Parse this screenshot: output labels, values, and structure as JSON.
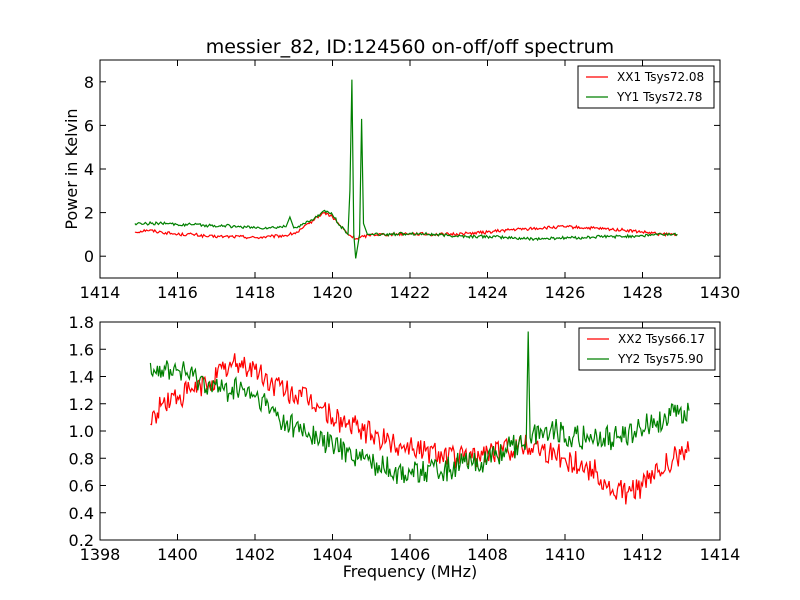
{
  "title": "messier_82, ID:124560 on-off/off spectrum",
  "colors": {
    "red": "#ff0000",
    "green": "#008000"
  },
  "chart_data": [
    {
      "type": "line",
      "ylabel": "Power in Kelvin",
      "xlabel": "",
      "xlim": [
        1414,
        1430
      ],
      "ylim": [
        -1,
        9
      ],
      "xticks": [
        1414,
        1416,
        1418,
        1420,
        1422,
        1424,
        1426,
        1428,
        1430
      ],
      "yticks": [
        0,
        2,
        4,
        6,
        8
      ],
      "legend_position": "top-right",
      "grid": false,
      "series": [
        {
          "name": "XX1 Tsys72.08",
          "color": "#ff0000",
          "x": [
            1414.9,
            1415.2,
            1415.6,
            1416.0,
            1416.4,
            1416.8,
            1417.2,
            1417.6,
            1418.0,
            1418.4,
            1418.8,
            1419.1,
            1419.4,
            1419.6,
            1419.8,
            1420.0,
            1420.2,
            1420.4,
            1420.6,
            1420.8,
            1421.0,
            1421.5,
            1422.0,
            1422.5,
            1423.0,
            1423.5,
            1424.0,
            1424.5,
            1425.0,
            1425.5,
            1426.0,
            1426.5,
            1427.0,
            1427.5,
            1428.0,
            1428.5,
            1428.9
          ],
          "y": [
            1.1,
            1.2,
            1.1,
            1.0,
            1.0,
            0.9,
            0.9,
            0.9,
            0.85,
            0.9,
            0.95,
            1.1,
            1.5,
            1.8,
            2.0,
            1.8,
            1.4,
            1.0,
            0.8,
            0.9,
            1.0,
            1.0,
            1.05,
            1.0,
            1.0,
            1.05,
            1.1,
            1.2,
            1.25,
            1.3,
            1.35,
            1.3,
            1.25,
            1.2,
            1.1,
            1.0,
            1.0
          ]
        },
        {
          "name": "YY1 Tsys72.78",
          "color": "#008000",
          "x": [
            1414.9,
            1415.2,
            1415.6,
            1416.0,
            1416.4,
            1416.8,
            1417.2,
            1417.6,
            1418.0,
            1418.4,
            1418.8,
            1418.9,
            1419.0,
            1419.3,
            1419.6,
            1419.8,
            1420.0,
            1420.2,
            1420.4,
            1420.45,
            1420.5,
            1420.55,
            1420.6,
            1420.7,
            1420.75,
            1420.8,
            1420.9,
            1421.0,
            1421.5,
            1422.0,
            1422.5,
            1423.0,
            1423.5,
            1424.0,
            1424.5,
            1425.0,
            1425.5,
            1426.0,
            1426.5,
            1427.0,
            1427.5,
            1428.0,
            1428.5,
            1428.9
          ],
          "y": [
            1.5,
            1.5,
            1.5,
            1.45,
            1.45,
            1.4,
            1.4,
            1.35,
            1.3,
            1.3,
            1.35,
            1.8,
            1.3,
            1.5,
            1.8,
            2.1,
            1.9,
            1.4,
            1.0,
            3.0,
            8.1,
            1.0,
            -0.1,
            1.0,
            6.3,
            1.5,
            1.0,
            1.0,
            1.0,
            1.05,
            1.0,
            0.95,
            0.9,
            0.9,
            0.85,
            0.8,
            0.8,
            0.85,
            0.85,
            0.9,
            0.9,
            0.95,
            1.0,
            1.0
          ]
        }
      ]
    },
    {
      "type": "line",
      "ylabel": "",
      "xlabel": "Frequency (MHz)",
      "xlim": [
        1398,
        1414
      ],
      "ylim": [
        0.2,
        1.8
      ],
      "xticks": [
        1398,
        1400,
        1402,
        1404,
        1406,
        1408,
        1410,
        1412,
        1414
      ],
      "yticks": [
        0.2,
        0.4,
        0.6,
        0.8,
        1.0,
        1.2,
        1.4,
        1.6,
        1.8
      ],
      "legend_position": "top-right",
      "grid": false,
      "series": [
        {
          "name": "XX2 Tsys66.17",
          "color": "#ff0000",
          "x": [
            1399.3,
            1399.6,
            1400.0,
            1400.4,
            1400.8,
            1401.2,
            1401.6,
            1402.0,
            1402.4,
            1402.8,
            1403.2,
            1403.6,
            1404.0,
            1404.4,
            1404.8,
            1405.2,
            1405.6,
            1406.0,
            1406.4,
            1406.8,
            1407.2,
            1407.6,
            1408.0,
            1408.4,
            1408.8,
            1409.2,
            1409.6,
            1410.0,
            1410.4,
            1410.8,
            1411.2,
            1411.6,
            1412.0,
            1412.4,
            1412.8,
            1413.2
          ],
          "y": [
            1.05,
            1.2,
            1.25,
            1.3,
            1.35,
            1.45,
            1.5,
            1.45,
            1.35,
            1.3,
            1.25,
            1.2,
            1.1,
            1.05,
            1.0,
            0.95,
            0.9,
            0.9,
            0.85,
            0.85,
            0.8,
            0.8,
            0.85,
            0.85,
            0.9,
            0.9,
            0.85,
            0.8,
            0.75,
            0.7,
            0.55,
            0.55,
            0.6,
            0.7,
            0.8,
            0.85
          ]
        },
        {
          "name": "YY2 Tsys75.90",
          "color": "#008000",
          "x": [
            1399.3,
            1399.6,
            1400.0,
            1400.4,
            1400.8,
            1401.2,
            1401.6,
            1402.0,
            1402.4,
            1402.8,
            1403.2,
            1403.6,
            1404.0,
            1404.4,
            1404.8,
            1405.2,
            1405.6,
            1406.0,
            1406.4,
            1406.8,
            1407.2,
            1407.6,
            1408.0,
            1408.4,
            1408.8,
            1409.0,
            1409.05,
            1409.1,
            1409.4,
            1409.8,
            1410.2,
            1410.6,
            1411.0,
            1411.4,
            1411.8,
            1412.2,
            1412.6,
            1413.2
          ],
          "y": [
            1.5,
            1.45,
            1.45,
            1.4,
            1.35,
            1.3,
            1.3,
            1.25,
            1.15,
            1.05,
            1.0,
            0.95,
            0.9,
            0.85,
            0.8,
            0.75,
            0.7,
            0.7,
            0.7,
            0.7,
            0.75,
            0.75,
            0.8,
            0.85,
            0.9,
            0.95,
            1.73,
            0.95,
            1.0,
            1.0,
            0.95,
            0.95,
            0.95,
            0.95,
            1.0,
            1.05,
            1.1,
            1.15
          ]
        }
      ]
    }
  ]
}
